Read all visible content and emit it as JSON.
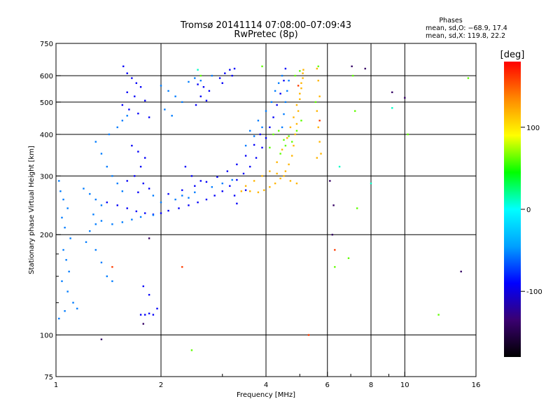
{
  "chart_data": {
    "type": "scatter",
    "title": "Tromsø 20141114 07:08:00–07:09:43",
    "subtitle": "RwPretec (8p)",
    "phase_box": {
      "title": "Phases",
      "line_o": "mean, sd,O: −68.9, 17.4",
      "line_x": "mean, sd,X: 119.8, 22.2"
    },
    "xlabel": "Frequency [MHz]",
    "ylabel": "Stationary phase Virtual Height [km]",
    "x_scale": "log",
    "y_scale": "log",
    "xlim": [
      1,
      16
    ],
    "ylim": [
      75,
      750
    ],
    "x_ticks": [
      "1",
      "2",
      "4",
      "6",
      "8",
      "10",
      "16"
    ],
    "x_tick_values": [
      1,
      2,
      4,
      6,
      8,
      10,
      16
    ],
    "x_minor_values": [
      3,
      5,
      7,
      9
    ],
    "y_ticks": [
      "75",
      "100",
      "200",
      "300",
      "400",
      "500",
      "600",
      "750"
    ],
    "y_tick_values": [
      75,
      100,
      200,
      300,
      400,
      500,
      600,
      750
    ],
    "y_minor_values": [
      125,
      150,
      175
    ],
    "grid": true,
    "colorbar": {
      "label": "[deg]",
      "range": [
        -180,
        180
      ],
      "ticks": [
        "100",
        "0",
        "-100"
      ],
      "tick_values": [
        100,
        0,
        -100
      ],
      "colors": [
        "#000000",
        "#3a0070",
        "#0000ff",
        "#00a0ff",
        "#00ffff",
        "#00ff00",
        "#ffff00",
        "#ff8800",
        "#ff0000"
      ]
    },
    "series": [
      {
        "color_value": -92,
        "points": [
          [
            1.56,
            640
          ],
          [
            1.6,
            610
          ],
          [
            1.65,
            590
          ],
          [
            1.7,
            570
          ],
          [
            1.75,
            555
          ],
          [
            1.6,
            535
          ],
          [
            1.68,
            520
          ],
          [
            1.8,
            505
          ],
          [
            1.55,
            490
          ],
          [
            1.62,
            475
          ],
          [
            1.72,
            462
          ],
          [
            1.85,
            450
          ],
          [
            2.55,
            565
          ],
          [
            2.65,
            555
          ],
          [
            2.75,
            540
          ],
          [
            2.6,
            520
          ],
          [
            2.7,
            505
          ],
          [
            2.52,
            490
          ],
          [
            2.95,
            590
          ],
          [
            3.05,
            610
          ],
          [
            3.15,
            625
          ],
          [
            3.25,
            630
          ],
          [
            3.0,
            570
          ],
          [
            3.2,
            600
          ],
          [
            1.65,
            370
          ],
          [
            1.72,
            355
          ],
          [
            1.8,
            340
          ],
          [
            1.75,
            320
          ],
          [
            1.68,
            300
          ],
          [
            1.78,
            285
          ],
          [
            1.85,
            275
          ],
          [
            1.6,
            290
          ],
          [
            1.72,
            268
          ],
          [
            1.4,
            250
          ],
          [
            1.5,
            245
          ],
          [
            1.6,
            240
          ],
          [
            1.7,
            235
          ],
          [
            1.8,
            232
          ],
          [
            1.9,
            230
          ],
          [
            2.0,
            232
          ],
          [
            2.1,
            236
          ],
          [
            2.25,
            240
          ],
          [
            2.4,
            245
          ],
          [
            2.55,
            250
          ],
          [
            2.7,
            255
          ],
          [
            2.85,
            262
          ],
          [
            3.0,
            270
          ],
          [
            3.15,
            280
          ],
          [
            3.3,
            292
          ],
          [
            3.45,
            305
          ],
          [
            3.6,
            320
          ],
          [
            3.75,
            340
          ],
          [
            3.9,
            365
          ],
          [
            4.0,
            390
          ],
          [
            4.1,
            420
          ],
          [
            4.2,
            450
          ],
          [
            4.3,
            490
          ],
          [
            4.4,
            530
          ],
          [
            4.5,
            580
          ],
          [
            4.55,
            630
          ],
          [
            2.1,
            265
          ],
          [
            2.3,
            272
          ],
          [
            2.5,
            280
          ],
          [
            2.7,
            288
          ],
          [
            2.9,
            298
          ],
          [
            3.1,
            310
          ],
          [
            3.3,
            325
          ],
          [
            3.5,
            345
          ],
          [
            3.7,
            372
          ],
          [
            3.85,
            400
          ],
          [
            1.75,
            115
          ],
          [
            1.8,
            115
          ],
          [
            1.85,
            116
          ],
          [
            1.9,
            115
          ],
          [
            1.78,
            140
          ],
          [
            1.85,
            132
          ],
          [
            1.95,
            120
          ],
          [
            2.6,
            290
          ],
          [
            2.45,
            300
          ],
          [
            2.35,
            320
          ],
          [
            3.25,
            262
          ],
          [
            3.5,
            272
          ],
          [
            3.3,
            248
          ]
        ]
      },
      {
        "color_value": -55,
        "points": [
          [
            1.02,
            290
          ],
          [
            1.03,
            270
          ],
          [
            1.05,
            255
          ],
          [
            1.08,
            240
          ],
          [
            1.04,
            225
          ],
          [
            1.06,
            210
          ],
          [
            1.1,
            195
          ],
          [
            1.05,
            180
          ],
          [
            1.07,
            168
          ],
          [
            1.09,
            155
          ],
          [
            1.04,
            145
          ],
          [
            1.08,
            135
          ],
          [
            1.12,
            125
          ],
          [
            1.06,
            118
          ],
          [
            1.15,
            120
          ],
          [
            1.02,
            112
          ],
          [
            1.2,
            275
          ],
          [
            1.25,
            265
          ],
          [
            1.3,
            255
          ],
          [
            1.35,
            245
          ],
          [
            1.28,
            230
          ],
          [
            1.3,
            215
          ],
          [
            1.25,
            205
          ],
          [
            1.22,
            190
          ],
          [
            1.3,
            180
          ],
          [
            1.35,
            165
          ],
          [
            1.4,
            150
          ],
          [
            1.45,
            145
          ],
          [
            1.42,
            400
          ],
          [
            1.5,
            420
          ],
          [
            1.55,
            440
          ],
          [
            1.6,
            455
          ],
          [
            1.3,
            380
          ],
          [
            1.35,
            350
          ],
          [
            1.4,
            320
          ],
          [
            1.45,
            300
          ],
          [
            1.5,
            285
          ],
          [
            1.55,
            270
          ],
          [
            1.35,
            220
          ],
          [
            1.45,
            215
          ],
          [
            1.55,
            218
          ],
          [
            1.65,
            222
          ],
          [
            1.75,
            226
          ],
          [
            1.9,
            229
          ],
          [
            2.0,
            560
          ],
          [
            2.1,
            540
          ],
          [
            2.2,
            520
          ],
          [
            2.3,
            500
          ],
          [
            2.05,
            475
          ],
          [
            2.15,
            455
          ],
          [
            2.4,
            575
          ],
          [
            2.5,
            590
          ],
          [
            2.6,
            580
          ],
          [
            2.8,
            600
          ],
          [
            3.6,
            410
          ],
          [
            3.8,
            440
          ],
          [
            4.0,
            470
          ],
          [
            4.15,
            500
          ],
          [
            4.25,
            540
          ],
          [
            4.35,
            570
          ],
          [
            4.45,
            600
          ],
          [
            3.5,
            370
          ],
          [
            3.7,
            395
          ],
          [
            3.9,
            420
          ],
          [
            4.45,
            420
          ],
          [
            4.5,
            460
          ],
          [
            4.55,
            500
          ],
          [
            4.6,
            540
          ],
          [
            4.65,
            580
          ],
          [
            2.3,
            262
          ],
          [
            2.5,
            268
          ],
          [
            2.8,
            278
          ],
          [
            3.0,
            285
          ],
          [
            3.2,
            292
          ],
          [
            2.0,
            250
          ],
          [
            2.2,
            255
          ],
          [
            2.4,
            258
          ],
          [
            1.9,
            262
          ]
        ]
      },
      {
        "color_value": 118,
        "points": [
          [
            3.6,
            270
          ],
          [
            3.8,
            268
          ],
          [
            3.95,
            272
          ],
          [
            4.1,
            278
          ],
          [
            4.25,
            285
          ],
          [
            4.4,
            295
          ],
          [
            4.55,
            310
          ],
          [
            4.65,
            325
          ],
          [
            4.75,
            345
          ],
          [
            4.8,
            370
          ],
          [
            4.85,
            400
          ],
          [
            4.9,
            430
          ],
          [
            4.95,
            470
          ],
          [
            5.0,
            510
          ],
          [
            5.05,
            550
          ],
          [
            5.1,
            590
          ],
          [
            5.12,
            625
          ],
          [
            4.3,
            330
          ],
          [
            4.45,
            360
          ],
          [
            4.6,
            390
          ],
          [
            4.7,
            420
          ],
          [
            4.8,
            450
          ],
          [
            4.9,
            490
          ],
          [
            5.0,
            530
          ],
          [
            5.05,
            570
          ],
          [
            5.1,
            610
          ],
          [
            3.9,
            300
          ],
          [
            4.1,
            310
          ],
          [
            4.3,
            305
          ],
          [
            4.5,
            300
          ],
          [
            4.7,
            290
          ],
          [
            4.9,
            285
          ],
          [
            3.7,
            290
          ],
          [
            3.5,
            280
          ],
          [
            3.4,
            270
          ],
          [
            5.6,
            630
          ],
          [
            5.65,
            580
          ],
          [
            5.7,
            520
          ],
          [
            5.6,
            470
          ],
          [
            5.65,
            420
          ],
          [
            5.7,
            380
          ],
          [
            5.75,
            350
          ],
          [
            5.6,
            340
          ]
        ]
      },
      {
        "color_value": 62,
        "points": [
          [
            4.2,
            400
          ],
          [
            4.35,
            410
          ],
          [
            4.5,
            385
          ],
          [
            4.65,
            395
          ],
          [
            4.4,
            350
          ],
          [
            4.55,
            370
          ],
          [
            4.75,
            380
          ],
          [
            4.9,
            410
          ],
          [
            5.05,
            440
          ],
          [
            4.1,
            365
          ],
          [
            5.0,
            620
          ],
          [
            4.85,
            600
          ],
          [
            5.55,
            500
          ],
          [
            5.65,
            640
          ],
          [
            6.9,
            170
          ],
          [
            7.1,
            600
          ],
          [
            12.5,
            115
          ],
          [
            6.3,
            160
          ],
          [
            7.3,
            240
          ],
          [
            7.2,
            470
          ],
          [
            10.2,
            400
          ],
          [
            15.2,
            590
          ],
          [
            2.45,
            90
          ],
          [
            3.9,
            640
          ],
          [
            2.6,
            600
          ]
        ]
      },
      {
        "color_value": 10,
        "points": [
          [
            8.0,
            285
          ],
          [
            2.55,
            625
          ],
          [
            6.5,
            320
          ],
          [
            9.2,
            480
          ]
        ]
      },
      {
        "color_value": 160,
        "points": [
          [
            1.45,
            160
          ],
          [
            2.3,
            160
          ],
          [
            5.3,
            100
          ],
          [
            6.3,
            180
          ],
          [
            5.7,
            440
          ],
          [
            4.95,
            560
          ]
        ]
      },
      {
        "color_value": -140,
        "points": [
          [
            1.35,
            97
          ],
          [
            1.78,
            108
          ],
          [
            1.85,
            195
          ],
          [
            6.2,
            200
          ],
          [
            6.25,
            245
          ],
          [
            7.7,
            630
          ],
          [
            7.05,
            640
          ],
          [
            9.2,
            535
          ],
          [
            10.0,
            515
          ],
          [
            14.5,
            155
          ],
          [
            6.1,
            290
          ]
        ]
      }
    ]
  }
}
